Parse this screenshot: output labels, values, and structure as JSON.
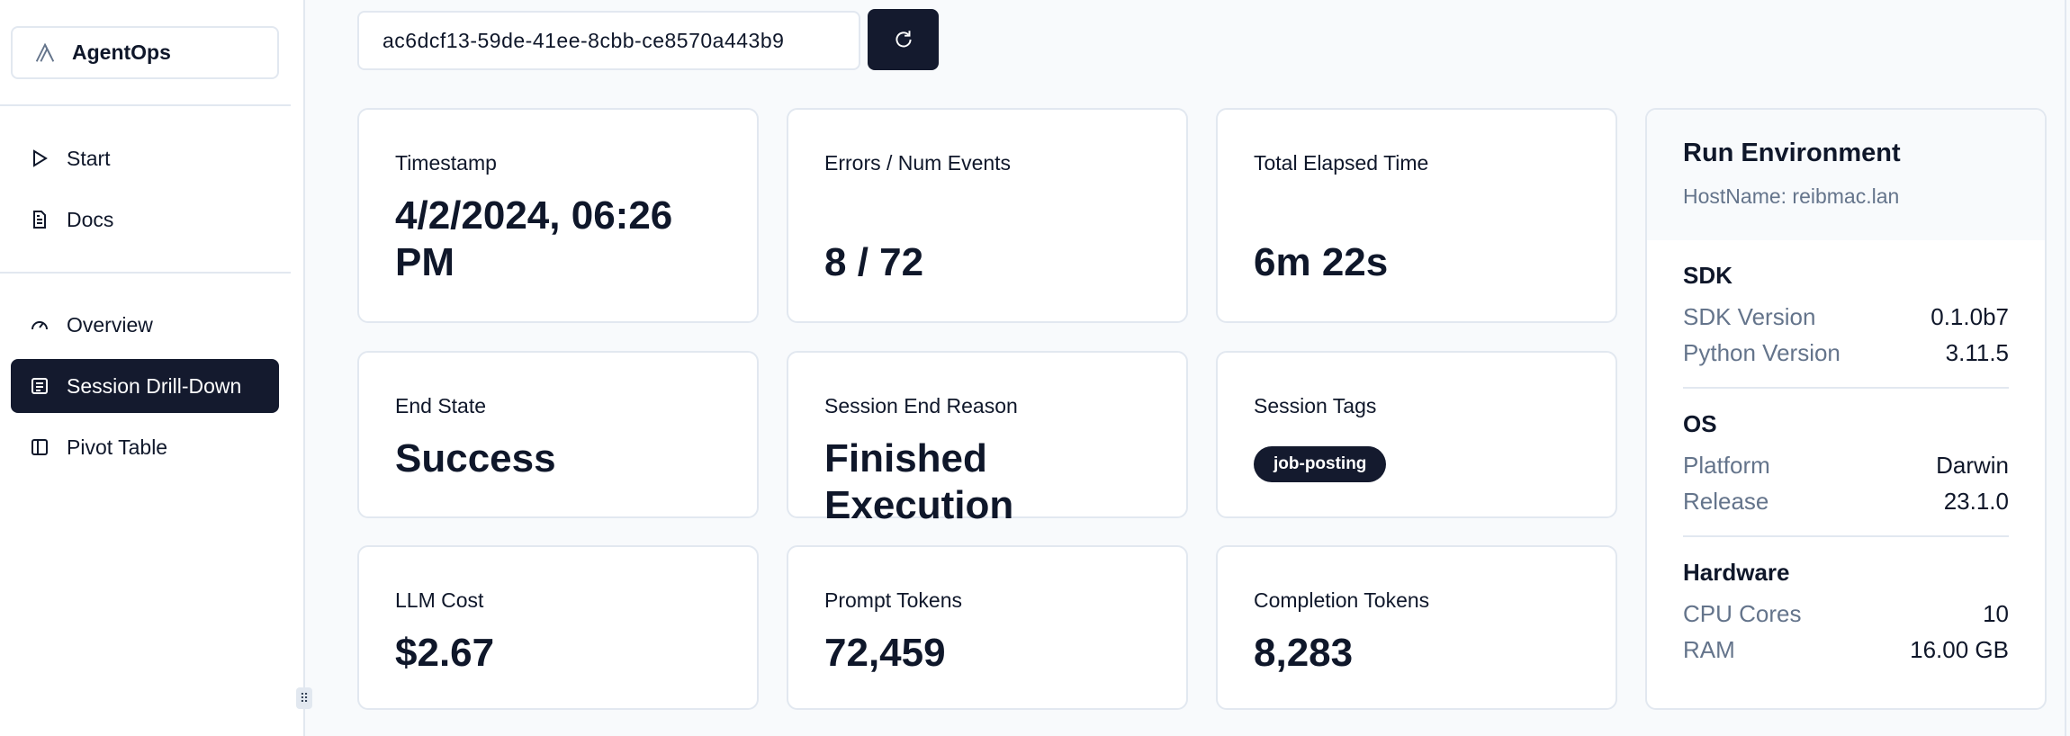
{
  "sidebar": {
    "brand": "AgentOps",
    "items": [
      {
        "label": "Start",
        "icon": "play-icon"
      },
      {
        "label": "Docs",
        "icon": "document-icon"
      },
      {
        "label": "Overview",
        "icon": "gauge-icon"
      },
      {
        "label": "Session Drill-Down",
        "icon": "list-icon",
        "active": true
      },
      {
        "label": "Pivot Table",
        "icon": "panel-icon"
      }
    ]
  },
  "session": {
    "id": "ac6dcf13-59de-41ee-8cbb-ce8570a443b9",
    "refresh_icon": "refresh-icon"
  },
  "cards": [
    {
      "label": "Timestamp",
      "value": "4/2/2024, 06:26 PM"
    },
    {
      "label": "Errors / Num Events",
      "value": "8 / 72"
    },
    {
      "label": "Total Elapsed Time",
      "value": "6m 22s"
    },
    {
      "label": "End State",
      "value": "Success"
    },
    {
      "label": "Session End Reason",
      "value": "Finished Execution"
    },
    {
      "label": "Session Tags",
      "tag": "job-posting"
    },
    {
      "label": "LLM Cost",
      "value": "$2.67"
    },
    {
      "label": "Prompt Tokens",
      "value": "72,459"
    },
    {
      "label": "Completion Tokens",
      "value": "8,283"
    }
  ],
  "env": {
    "title": "Run Environment",
    "host": "HostName: reibmac.lan",
    "sections": [
      {
        "title": "SDK",
        "rows": [
          [
            "SDK Version",
            "0.1.0b7"
          ],
          [
            "Python Version",
            "3.11.5"
          ]
        ]
      },
      {
        "title": "OS",
        "rows": [
          [
            "Platform",
            "Darwin"
          ],
          [
            "Release",
            "23.1.0"
          ]
        ]
      },
      {
        "title": "Hardware",
        "rows": [
          [
            "CPU Cores",
            "10"
          ],
          [
            "RAM",
            "16.00 GB"
          ]
        ]
      }
    ]
  },
  "colors": {
    "accent": "#141a2e",
    "border": "#e2e8f0",
    "muted": "#64748b"
  }
}
